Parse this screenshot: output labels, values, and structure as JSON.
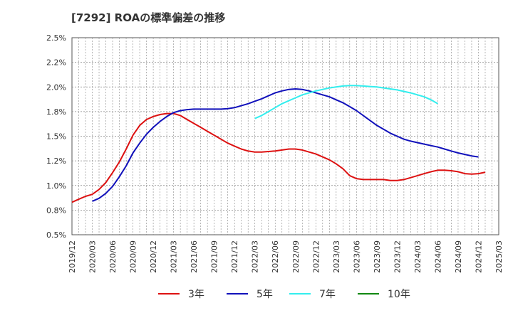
{
  "chart_data": {
    "type": "line",
    "title": "[7292]  ROAの標準偏差の推移",
    "xlabel": "",
    "ylabel": "",
    "ylim": [
      0.5,
      2.5
    ],
    "yticks": [
      "0.5%",
      "0.8%",
      "1.0%",
      "1.2%",
      "1.5%",
      "1.8%",
      "2.0%",
      "2.2%",
      "2.5%"
    ],
    "xticks": [
      "2019/12",
      "2020/03",
      "2020/06",
      "2020/09",
      "2020/12",
      "2021/03",
      "2021/06",
      "2021/09",
      "2021/12",
      "2022/03",
      "2022/06",
      "2022/09",
      "2022/12",
      "2023/03",
      "2023/06",
      "2023/09",
      "2023/12",
      "2024/03",
      "2024/06",
      "2024/09",
      "2024/12",
      "2025/03"
    ],
    "grid": true,
    "legend_position": "bottom",
    "x_start": "2019/12",
    "series": [
      {
        "name": "3年",
        "color": "#dd1111",
        "start": "2019/12",
        "values": [
          0.83,
          0.86,
          0.89,
          0.91,
          0.96,
          1.03,
          1.13,
          1.24,
          1.37,
          1.51,
          1.61,
          1.67,
          1.7,
          1.72,
          1.73,
          1.73,
          1.71,
          1.67,
          1.63,
          1.59,
          1.55,
          1.51,
          1.47,
          1.43,
          1.4,
          1.37,
          1.35,
          1.34,
          1.34,
          1.345,
          1.35,
          1.36,
          1.37,
          1.37,
          1.36,
          1.34,
          1.32,
          1.29,
          1.26,
          1.22,
          1.17,
          1.1,
          1.07,
          1.06,
          1.06,
          1.06,
          1.06,
          1.05,
          1.05,
          1.06,
          1.08,
          1.1,
          1.12,
          1.14,
          1.155,
          1.155,
          1.15,
          1.14,
          1.12,
          1.115,
          1.12,
          1.135
        ]
      },
      {
        "name": "5年",
        "color": "#1111bb",
        "start": "2020/03",
        "values": [
          0.84,
          0.87,
          0.92,
          0.99,
          1.09,
          1.2,
          1.33,
          1.43,
          1.52,
          1.59,
          1.65,
          1.7,
          1.74,
          1.76,
          1.77,
          1.775,
          1.775,
          1.775,
          1.775,
          1.775,
          1.78,
          1.79,
          1.81,
          1.83,
          1.855,
          1.88,
          1.91,
          1.94,
          1.96,
          1.975,
          1.98,
          1.975,
          1.96,
          1.94,
          1.92,
          1.9,
          1.87,
          1.84,
          1.8,
          1.76,
          1.71,
          1.66,
          1.61,
          1.57,
          1.53,
          1.5,
          1.47,
          1.45,
          1.435,
          1.42,
          1.405,
          1.39,
          1.37,
          1.35,
          1.33,
          1.315,
          1.3,
          1.29
        ]
      },
      {
        "name": "7年",
        "color": "#33eeee",
        "start": "2022/03",
        "values": [
          1.68,
          1.71,
          1.75,
          1.79,
          1.83,
          1.86,
          1.89,
          1.92,
          1.94,
          1.96,
          1.975,
          1.99,
          2.0,
          2.01,
          2.015,
          2.015,
          2.01,
          2.005,
          2.0,
          1.99,
          1.98,
          1.97,
          1.955,
          1.94,
          1.92,
          1.9,
          1.87,
          1.83
        ]
      },
      {
        "name": "10年",
        "color": "#118811",
        "start": "2022/03",
        "values": []
      }
    ]
  }
}
